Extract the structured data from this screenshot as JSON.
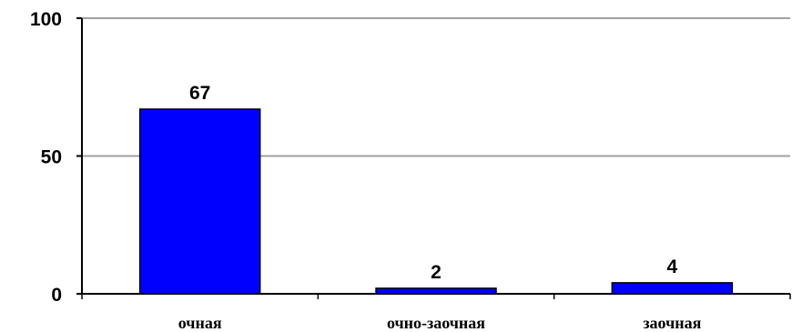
{
  "chart_data": {
    "type": "bar",
    "categories": [
      "очная",
      "очно-заочная",
      "заочная"
    ],
    "values": [
      67,
      2,
      4
    ],
    "data_labels": [
      "67",
      "2",
      "4"
    ],
    "ylim": [
      0,
      100
    ],
    "yticks": [
      0,
      50,
      100
    ],
    "ytick_labels": [
      "0",
      "50",
      "100"
    ],
    "grid": true,
    "legend": "none",
    "title": "",
    "xlabel": "",
    "ylabel": ""
  },
  "colors": {
    "bar": "#0000ff",
    "bar_edge": "#000000",
    "grid": "#a0a0a0",
    "axis": "#000000"
  }
}
